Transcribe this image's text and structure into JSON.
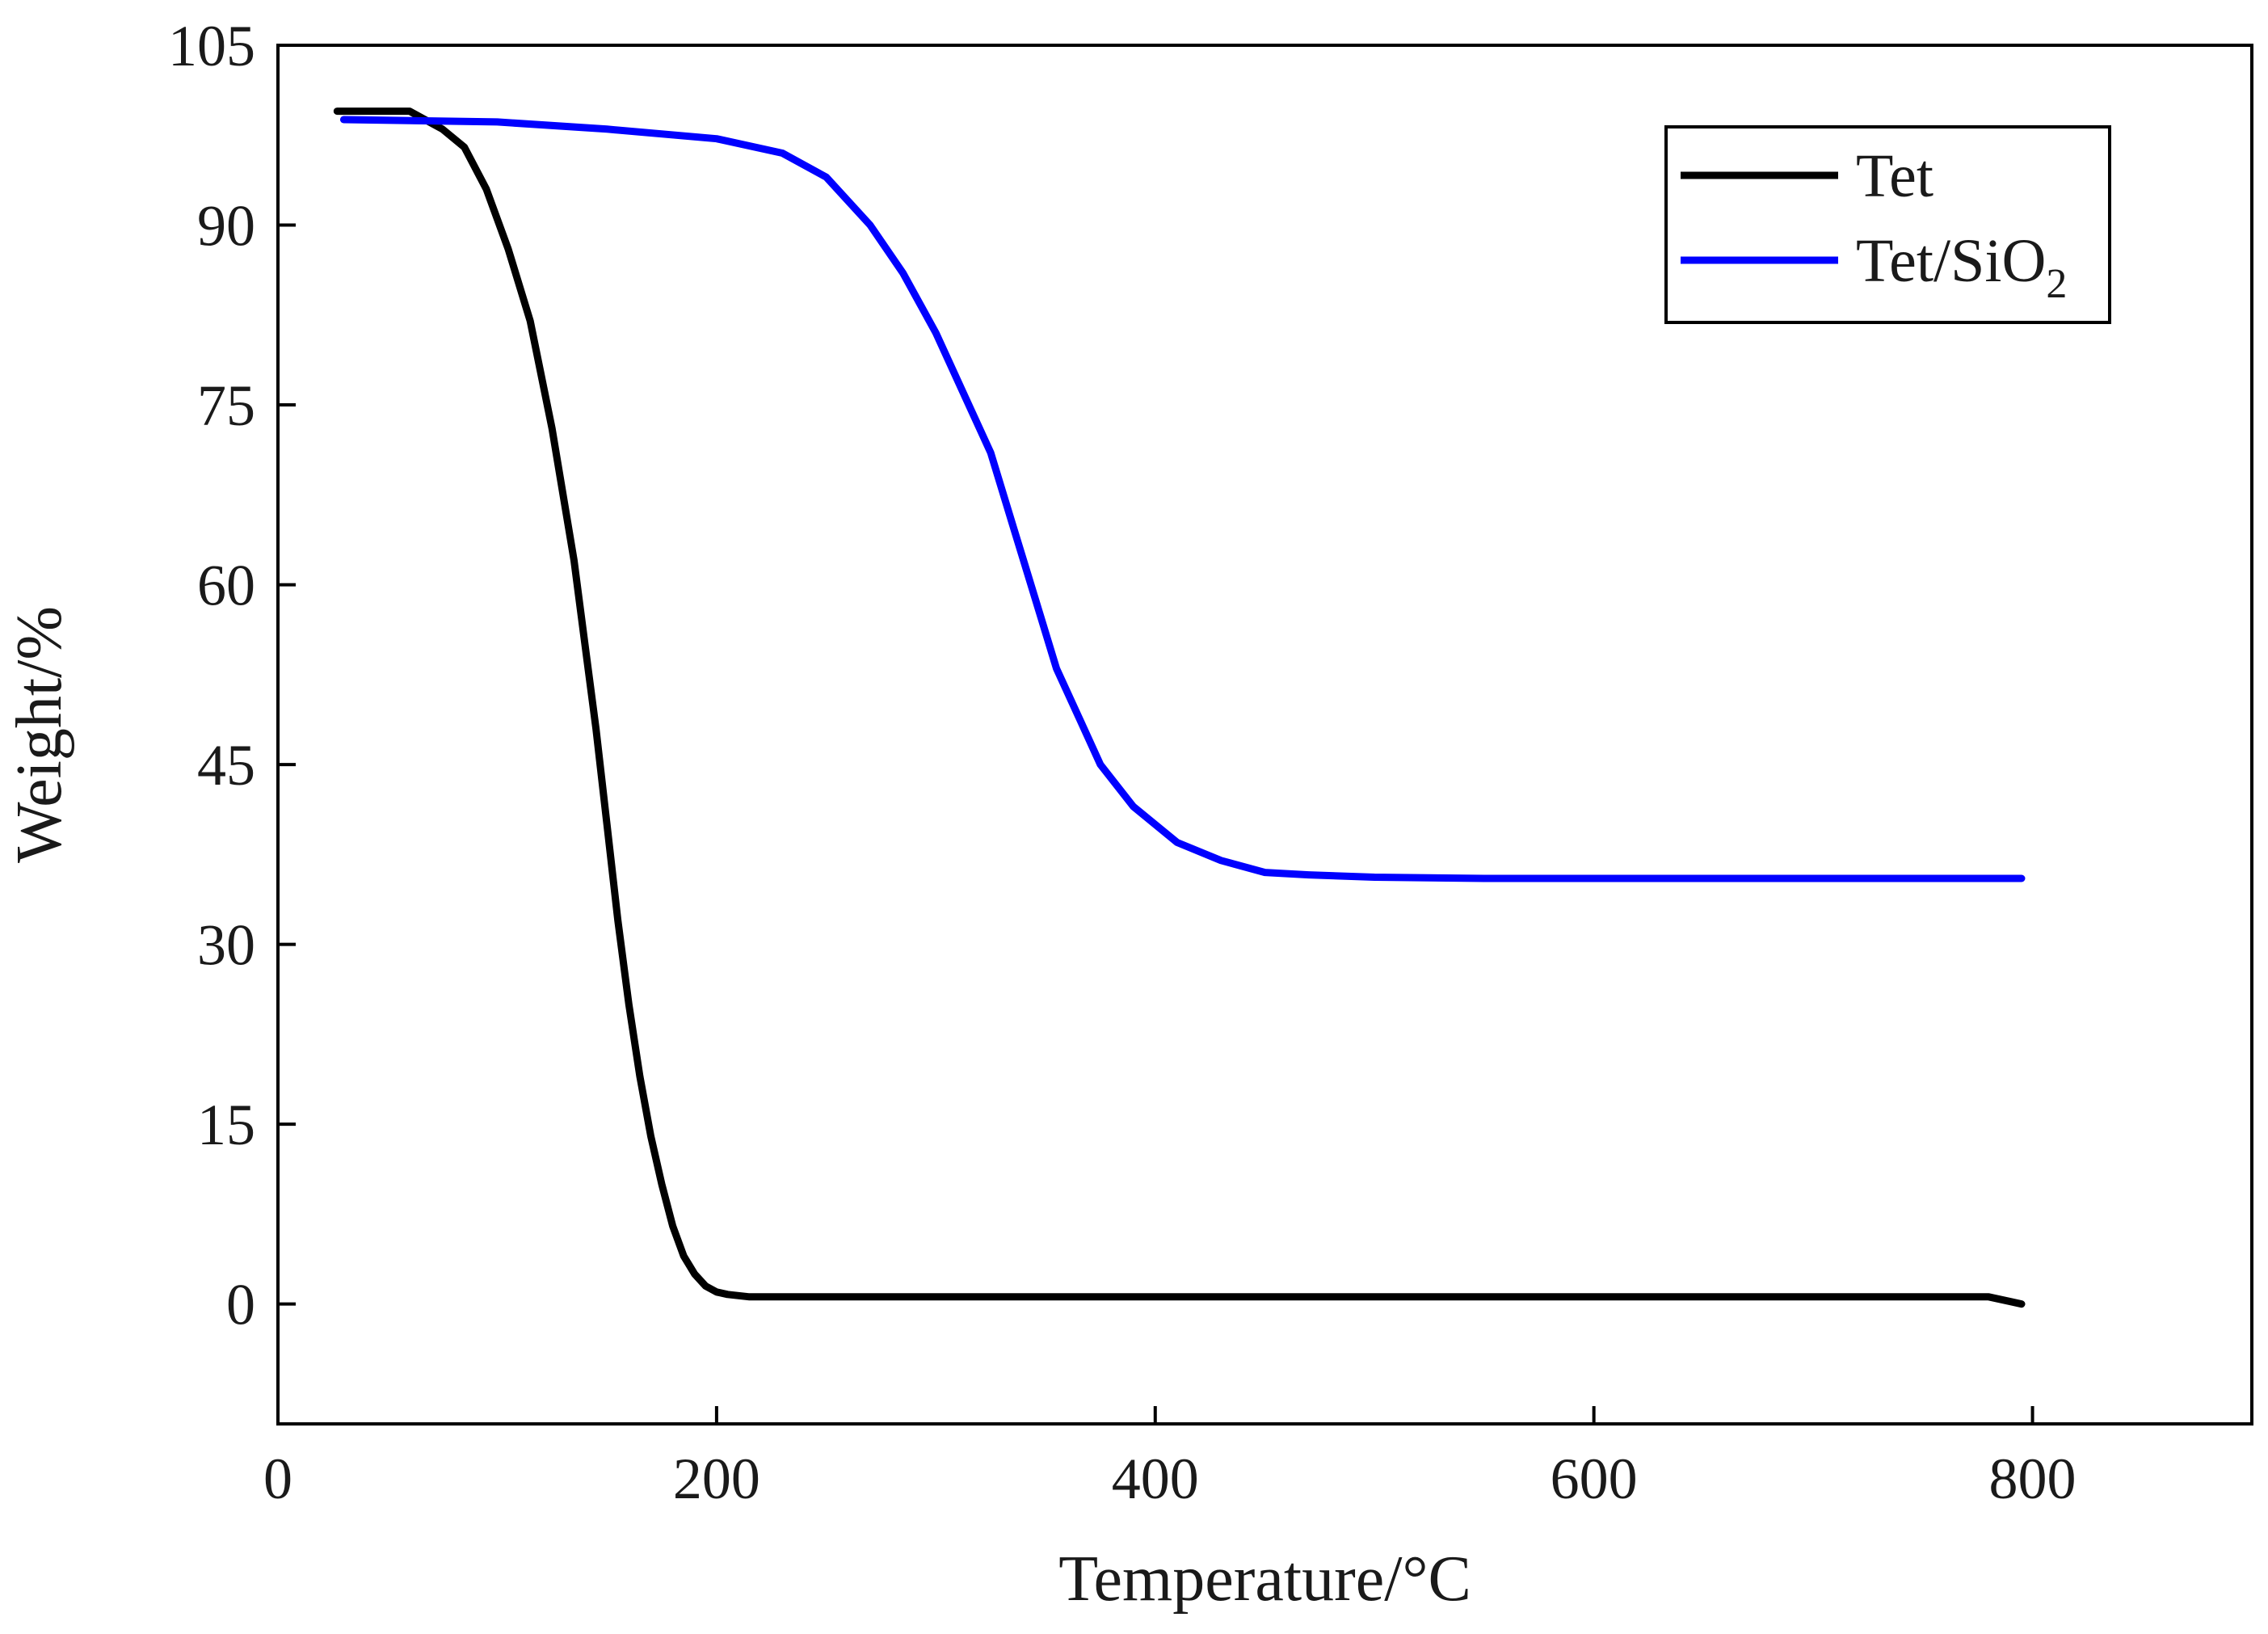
{
  "chart_data": {
    "type": "line",
    "xlabel": "Temperature/°C",
    "ylabel": "Weight/%",
    "xlim": [
      0,
      900
    ],
    "ylim": [
      -10,
      105
    ],
    "xticks": [
      0,
      200,
      400,
      600,
      800
    ],
    "yticks": [
      0,
      15,
      30,
      45,
      60,
      75,
      90,
      105
    ],
    "grid": false,
    "legend_position": "top-right",
    "series": [
      {
        "name": "Tet",
        "name_main": "Tet",
        "name_sub": "",
        "color": "#000000",
        "x": [
          27,
          60,
          75,
          85,
          95,
          105,
          115,
          125,
          135,
          140,
          145,
          150,
          155,
          160,
          165,
          170,
          175,
          180,
          185,
          190,
          195,
          200,
          205,
          210,
          215,
          220,
          250,
          300,
          400,
          500,
          600,
          700,
          780,
          790,
          795
        ],
        "y": [
          99.5,
          99.5,
          98,
          96.5,
          93,
          88,
          82,
          73,
          62,
          55,
          48,
          40,
          32,
          25,
          19,
          14,
          10,
          6.5,
          4,
          2.5,
          1.5,
          1,
          0.8,
          0.7,
          0.6,
          0.6,
          0.6,
          0.6,
          0.6,
          0.6,
          0.6,
          0.6,
          0.6,
          0.2,
          0.0
        ]
      },
      {
        "name": "Tet/SiO2",
        "name_main": "Tet/SiO",
        "name_sub": "2",
        "color": "#0000ff",
        "x": [
          30,
          100,
          150,
          200,
          230,
          250,
          270,
          285,
          300,
          315,
          325,
          335,
          345,
          355,
          365,
          375,
          390,
          410,
          430,
          450,
          470,
          500,
          550,
          600,
          700,
          795
        ],
        "y": [
          98.8,
          98.6,
          98,
          97.2,
          96,
          94,
          90,
          86,
          81,
          75,
          71,
          65,
          59,
          53,
          49,
          45,
          41.5,
          38.5,
          37,
          36,
          35.8,
          35.6,
          35.5,
          35.5,
          35.5,
          35.5
        ]
      }
    ]
  }
}
